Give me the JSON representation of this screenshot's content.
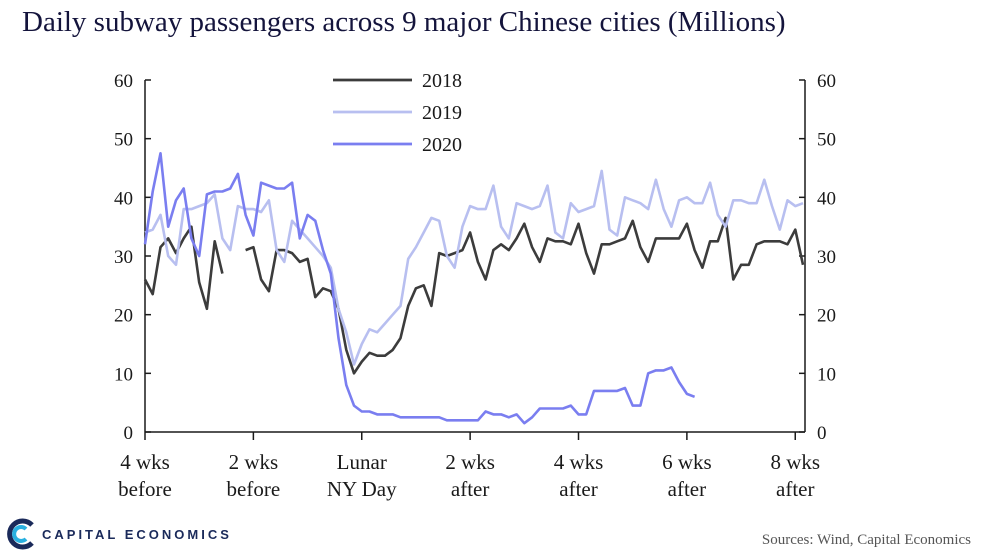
{
  "title": "Daily subway passengers across 9 major Chinese cities (Millions)",
  "sources": "Sources: Wind, Capital Economics",
  "logo": {
    "text": "CAPITAL ECONOMICS",
    "icon": "capital-economics-logo-icon"
  },
  "chart_data": {
    "type": "line",
    "title": "Daily subway passengers across 9 major Chinese cities (Millions)",
    "ylim": [
      0,
      60
    ],
    "yticks": [
      0,
      10,
      20,
      30,
      40,
      50,
      60
    ],
    "xlim": [
      -28,
      61
    ],
    "xticks": [
      {
        "x": -28,
        "label": [
          "4 wks",
          "before"
        ]
      },
      {
        "x": -14,
        "label": [
          "2 wks",
          "before"
        ]
      },
      {
        "x": 0,
        "label": [
          "Lunar",
          "NY Day"
        ]
      },
      {
        "x": 14,
        "label": [
          "2 wks",
          "after"
        ]
      },
      {
        "x": 28,
        "label": [
          "4 wks",
          "after"
        ]
      },
      {
        "x": 42,
        "label": [
          "6 wks",
          "after"
        ]
      },
      {
        "x": 56,
        "label": [
          "8 wks",
          "after"
        ]
      }
    ],
    "grid": false,
    "legend_position": "top-center",
    "series": [
      {
        "name": "2018",
        "color": "#3c3c3c",
        "segments": [
          [
            [
              -28,
              26
            ],
            [
              -27,
              23.5
            ],
            [
              -26,
              31.5
            ],
            [
              -25,
              33
            ],
            [
              -24,
              30.5
            ],
            [
              -23,
              33
            ],
            [
              -22,
              35
            ],
            [
              -21,
              25.5
            ],
            [
              -20,
              21
            ],
            [
              -19,
              32.5
            ],
            [
              -18,
              27
            ]
          ],
          [
            [
              -15,
              31
            ],
            [
              -14,
              31.5
            ],
            [
              -13,
              26
            ],
            [
              -12,
              24
            ],
            [
              -11,
              31
            ],
            [
              -10,
              31
            ],
            [
              -9,
              30.5
            ],
            [
              -8,
              29
            ],
            [
              -7,
              29.5
            ],
            [
              -6,
              23
            ],
            [
              -5,
              24.5
            ],
            [
              -4,
              24
            ],
            [
              -3,
              21
            ],
            [
              -2,
              14
            ],
            [
              -1,
              10
            ],
            [
              0,
              12
            ],
            [
              1,
              13.5
            ],
            [
              2,
              13
            ],
            [
              3,
              13
            ],
            [
              4,
              14
            ],
            [
              5,
              16
            ],
            [
              6,
              21.5
            ],
            [
              7,
              24.5
            ],
            [
              8,
              25
            ],
            [
              9,
              21.5
            ],
            [
              10,
              30.5
            ],
            [
              11,
              30
            ],
            [
              12,
              30.5
            ],
            [
              13,
              31
            ],
            [
              14,
              34
            ],
            [
              15,
              29
            ],
            [
              16,
              26
            ],
            [
              17,
              31
            ],
            [
              18,
              32
            ],
            [
              19,
              31
            ],
            [
              20,
              33
            ],
            [
              21,
              35.5
            ],
            [
              22,
              31.5
            ],
            [
              23,
              29
            ],
            [
              24,
              33
            ],
            [
              25,
              32.5
            ],
            [
              26,
              32.5
            ],
            [
              27,
              32
            ],
            [
              28,
              35.5
            ],
            [
              29,
              30.5
            ],
            [
              30,
              27
            ],
            [
              31,
              32
            ],
            [
              32,
              32
            ],
            [
              33,
              32.5
            ],
            [
              34,
              33
            ],
            [
              35,
              36
            ],
            [
              36,
              31.5
            ],
            [
              37,
              29
            ],
            [
              38,
              33
            ],
            [
              39,
              33
            ],
            [
              40,
              33
            ],
            [
              41,
              33
            ],
            [
              42,
              35.5
            ],
            [
              43,
              31
            ],
            [
              44,
              28
            ],
            [
              45,
              32.5
            ],
            [
              46,
              32.5
            ],
            [
              47,
              36.5
            ],
            [
              48,
              26
            ],
            [
              49,
              28.5
            ],
            [
              50,
              28.5
            ],
            [
              51,
              32
            ],
            [
              52,
              32.5
            ],
            [
              53,
              32.5
            ],
            [
              54,
              32.5
            ],
            [
              55,
              32
            ],
            [
              56,
              34.5
            ],
            [
              57,
              28.5
            ]
          ]
        ]
      },
      {
        "name": "2019",
        "color": "#b8bff0",
        "segments": [
          [
            [
              -28,
              34
            ],
            [
              -27,
              34.5
            ],
            [
              -26,
              37
            ],
            [
              -25,
              30
            ],
            [
              -24,
              28.5
            ],
            [
              -23,
              38
            ],
            [
              -22,
              38
            ],
            [
              -21,
              38.5
            ],
            [
              -20,
              39
            ],
            [
              -19,
              40.5
            ],
            [
              -18,
              33
            ],
            [
              -17,
              31
            ],
            [
              -16,
              38.5
            ],
            [
              -15,
              38
            ],
            [
              -14,
              38
            ],
            [
              -13,
              37.5
            ],
            [
              -12,
              39.5
            ],
            [
              -11,
              31
            ],
            [
              -10,
              29
            ],
            [
              -9,
              36
            ],
            [
              -8,
              34.5
            ],
            [
              -7,
              33
            ],
            [
              -6,
              31.5
            ],
            [
              -5,
              30
            ],
            [
              -4,
              28
            ],
            [
              -3,
              21
            ],
            [
              -2,
              17
            ],
            [
              -1,
              11.5
            ],
            [
              0,
              15
            ],
            [
              1,
              17.5
            ],
            [
              2,
              17
            ],
            [
              3,
              18.5
            ],
            [
              4,
              20
            ],
            [
              5,
              21.5
            ],
            [
              6,
              29.5
            ],
            [
              7,
              31.5
            ],
            [
              8,
              34
            ],
            [
              9,
              36.5
            ],
            [
              10,
              36
            ],
            [
              11,
              30
            ],
            [
              12,
              28
            ],
            [
              13,
              35
            ],
            [
              14,
              38.5
            ],
            [
              15,
              38
            ],
            [
              16,
              38
            ],
            [
              17,
              42
            ],
            [
              18,
              35
            ],
            [
              19,
              33
            ],
            [
              20,
              39
            ],
            [
              21,
              38.5
            ],
            [
              22,
              38
            ],
            [
              23,
              38.5
            ],
            [
              24,
              42
            ],
            [
              25,
              34
            ],
            [
              26,
              33
            ],
            [
              27,
              39
            ],
            [
              28,
              37.5
            ],
            [
              29,
              38
            ],
            [
              30,
              38.5
            ],
            [
              31,
              44.5
            ],
            [
              32,
              34.5
            ],
            [
              33,
              33.5
            ],
            [
              34,
              40
            ],
            [
              35,
              39.5
            ],
            [
              36,
              39
            ],
            [
              37,
              38
            ],
            [
              38,
              43
            ],
            [
              39,
              38
            ],
            [
              40,
              35
            ],
            [
              41,
              39.5
            ],
            [
              42,
              40
            ],
            [
              43,
              39
            ],
            [
              44,
              39
            ],
            [
              45,
              42.5
            ],
            [
              46,
              37
            ],
            [
              47,
              35
            ],
            [
              48,
              39.5
            ],
            [
              49,
              39.5
            ],
            [
              50,
              39
            ],
            [
              51,
              39
            ],
            [
              52,
              43
            ],
            [
              53,
              38.5
            ],
            [
              54,
              34.5
            ],
            [
              55,
              39.5
            ],
            [
              56,
              38.5
            ],
            [
              57,
              39
            ]
          ]
        ]
      },
      {
        "name": "2020",
        "color": "#7a7ef0",
        "segments": [
          [
            [
              -28,
              32
            ],
            [
              -27,
              41
            ],
            [
              -26,
              47.5
            ],
            [
              -25,
              35
            ],
            [
              -24,
              39.5
            ],
            [
              -23,
              41.5
            ],
            [
              -22,
              33
            ],
            [
              -21,
              30
            ],
            [
              -20,
              40.5
            ],
            [
              -19,
              41
            ],
            [
              -18,
              41
            ],
            [
              -17,
              41.5
            ],
            [
              -16,
              44
            ],
            [
              -15,
              37
            ],
            [
              -14,
              33.5
            ],
            [
              -13,
              42.5
            ],
            [
              -12,
              42
            ],
            [
              -11,
              41.5
            ],
            [
              -10,
              41.5
            ],
            [
              -9,
              42.5
            ],
            [
              -8,
              33
            ],
            [
              -7,
              37
            ],
            [
              -6,
              36
            ],
            [
              -5,
              31
            ],
            [
              -4,
              27
            ],
            [
              -3,
              16
            ],
            [
              -2,
              8
            ],
            [
              -1,
              4.5
            ],
            [
              0,
              3.5
            ],
            [
              1,
              3.5
            ],
            [
              2,
              3
            ],
            [
              3,
              3
            ],
            [
              4,
              3
            ],
            [
              5,
              2.5
            ],
            [
              6,
              2.5
            ],
            [
              7,
              2.5
            ],
            [
              8,
              2.5
            ],
            [
              9,
              2.5
            ],
            [
              10,
              2.5
            ],
            [
              11,
              2
            ],
            [
              12,
              2
            ],
            [
              13,
              2
            ],
            [
              14,
              2
            ],
            [
              15,
              2
            ],
            [
              16,
              3.5
            ],
            [
              17,
              3
            ],
            [
              18,
              3
            ],
            [
              19,
              2.5
            ],
            [
              20,
              3
            ],
            [
              21,
              1.5
            ],
            [
              22,
              2.5
            ],
            [
              23,
              4
            ],
            [
              24,
              4
            ],
            [
              25,
              4
            ],
            [
              26,
              4
            ],
            [
              27,
              4.5
            ],
            [
              28,
              3
            ],
            [
              29,
              3
            ],
            [
              30,
              7
            ],
            [
              31,
              7
            ],
            [
              32,
              7
            ],
            [
              33,
              7
            ],
            [
              34,
              7.5
            ],
            [
              35,
              4.5
            ],
            [
              36,
              4.5
            ],
            [
              37,
              10
            ],
            [
              38,
              10.5
            ],
            [
              39,
              10.5
            ],
            [
              40,
              11
            ],
            [
              41,
              8.5
            ],
            [
              42,
              6.5
            ],
            [
              43,
              6
            ]
          ]
        ]
      }
    ]
  }
}
